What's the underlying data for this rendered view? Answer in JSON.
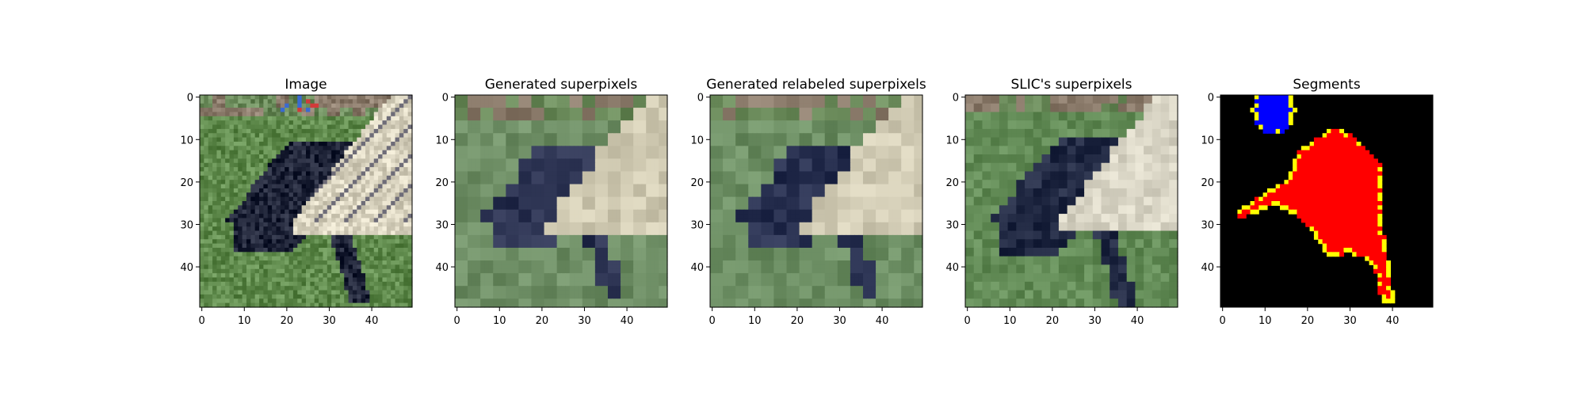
{
  "figure": {
    "panel_titles": [
      "Image",
      "Generated superpixels",
      "Generated relabeled superpixels",
      "SLIC's superpixels",
      "Segments"
    ]
  },
  "chart_data": [
    {
      "type": "heatmap",
      "title": "Image",
      "content": "photo of a black dog on grass",
      "xlim": [
        -0.5,
        49.5
      ],
      "ylim": [
        49.5,
        -0.5
      ],
      "xticks": [
        0,
        10,
        20,
        30,
        40
      ],
      "yticks": [
        0,
        10,
        20,
        30,
        40
      ],
      "grid": false,
      "colors": {
        "grass": "#5f8a4c",
        "dog": "#1f2438",
        "fence": "#d9d3bf"
      }
    },
    {
      "type": "heatmap",
      "title": "Generated superpixels",
      "content": "superpixel mean-color rendering",
      "xlim": [
        -0.5,
        49.5
      ],
      "ylim": [
        49.5,
        -0.5
      ],
      "xticks": [
        0,
        10,
        20,
        30,
        40
      ],
      "yticks": [
        0,
        10,
        20,
        30,
        40
      ],
      "grid": false,
      "colors": {
        "grass": "#6f8f66",
        "dog": "#2a3150",
        "fence": "#cfc9b1"
      }
    },
    {
      "type": "heatmap",
      "title": "Generated relabeled superpixels",
      "content": "relabeled superpixel mean-color rendering",
      "xlim": [
        -0.5,
        49.5
      ],
      "ylim": [
        49.5,
        -0.5
      ],
      "xticks": [
        0,
        10,
        20,
        30,
        40
      ],
      "yticks": [
        0,
        10,
        20,
        30,
        40
      ],
      "grid": false,
      "colors": {
        "grass": "#6c8e63",
        "dog": "#283050",
        "fence": "#d2ccb5"
      }
    },
    {
      "type": "heatmap",
      "title": "SLIC's superpixels",
      "content": "SLIC superpixel mean-color rendering",
      "xlim": [
        -0.5,
        49.5
      ],
      "ylim": [
        49.5,
        -0.5
      ],
      "xticks": [
        0,
        10,
        20,
        30,
        40
      ],
      "yticks": [
        0,
        10,
        20,
        30,
        40
      ],
      "grid": false,
      "colors": {
        "grass": "#638c57",
        "dog": "#222a44",
        "fence": "#d8d4c4"
      }
    },
    {
      "type": "heatmap",
      "title": "Segments",
      "content": "segmentation mask",
      "xlim": [
        -0.5,
        49.5
      ],
      "ylim": [
        49.5,
        -0.5
      ],
      "xticks": [
        0,
        10,
        20,
        30,
        40
      ],
      "yticks": [
        0,
        10,
        20,
        30,
        40
      ],
      "grid": false,
      "colors": {
        "background": "#000000",
        "segment_1": "#0000ff",
        "segment_2": "#ff0000",
        "boundary": "#ffff00"
      },
      "segments": [
        {
          "label": 1,
          "color": "#0000ff",
          "center": [
            12,
            3
          ],
          "radius": 5
        },
        {
          "label": 2,
          "color": "#ff0000",
          "polygon": [
            [
              26,
              8
            ],
            [
              28,
              8
            ],
            [
              30,
              9
            ],
            [
              33,
              11
            ],
            [
              36,
              14
            ],
            [
              38,
              17
            ],
            [
              38,
              24
            ],
            [
              38,
              30
            ],
            [
              39,
              36
            ],
            [
              40,
              42
            ],
            [
              41,
              49
            ],
            [
              38,
              49
            ],
            [
              37,
              44
            ],
            [
              36,
              40
            ],
            [
              34,
              38
            ],
            [
              32,
              38
            ],
            [
              30,
              37
            ],
            [
              28,
              38
            ],
            [
              25,
              38
            ],
            [
              24,
              36
            ],
            [
              22,
              33
            ],
            [
              20,
              30
            ],
            [
              18,
              28
            ],
            [
              15,
              27
            ],
            [
              13,
              26
            ],
            [
              10,
              27
            ],
            [
              8,
              28
            ],
            [
              5,
              29
            ],
            [
              4,
              28
            ],
            [
              6,
              26
            ],
            [
              9,
              24
            ],
            [
              12,
              22
            ],
            [
              15,
              21
            ],
            [
              17,
              17
            ],
            [
              18,
              14
            ],
            [
              20,
              12
            ],
            [
              23,
              10
            ]
          ]
        }
      ]
    }
  ]
}
